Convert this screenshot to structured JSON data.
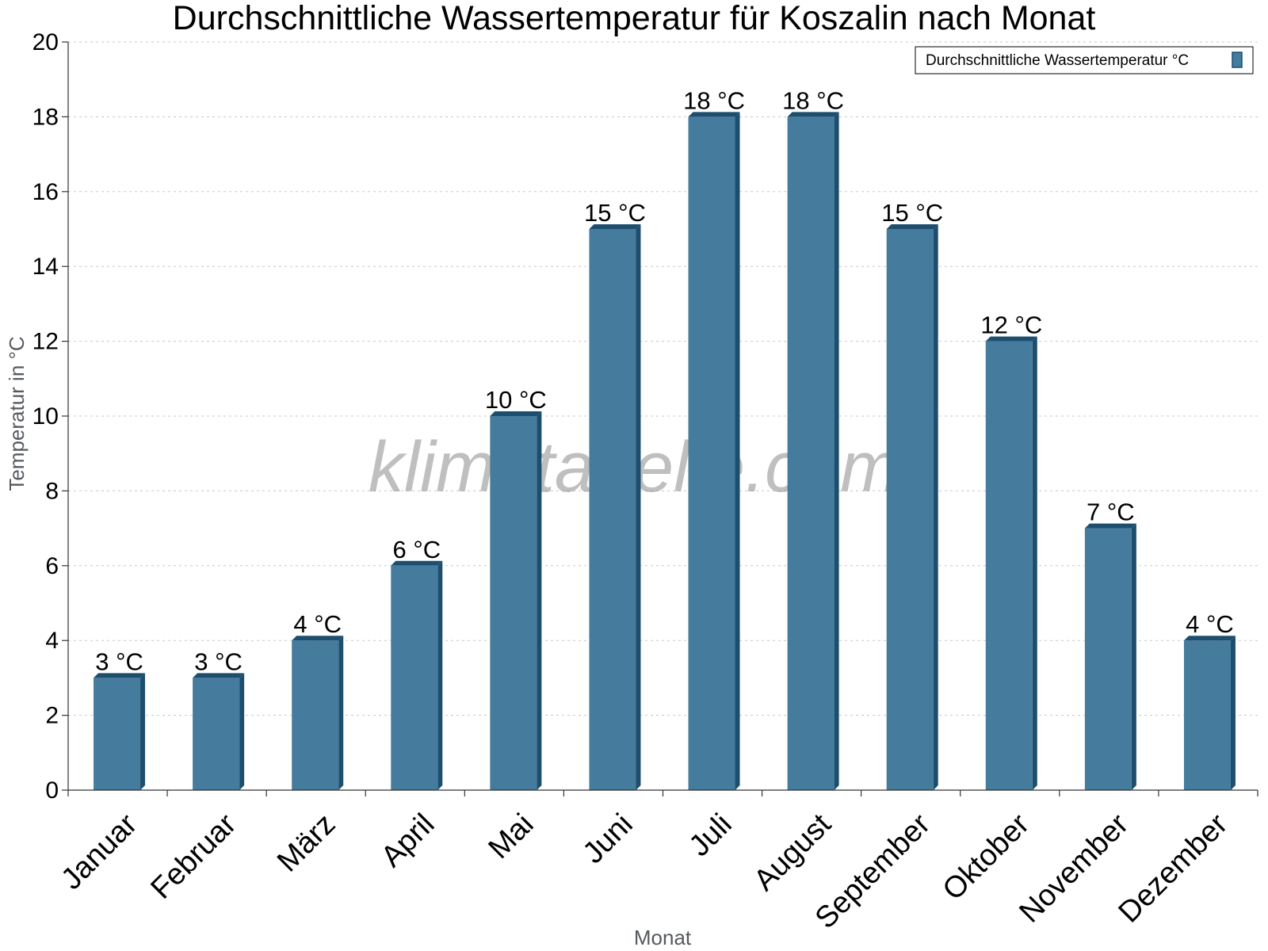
{
  "chart_data": {
    "type": "bar",
    "title": "Durchschnittliche Wassertemperatur für Koszalin nach Monat",
    "xlabel": "Monat",
    "ylabel": "Temperatur in °C",
    "ylim": [
      0,
      20
    ],
    "yticks": [
      0,
      2,
      4,
      6,
      8,
      10,
      12,
      14,
      16,
      18,
      20
    ],
    "grid": true,
    "legend_position": "top-right",
    "watermark": "klimatabelle.com",
    "categories": [
      "Januar",
      "Februar",
      "März",
      "April",
      "Mai",
      "Juni",
      "Juli",
      "August",
      "September",
      "Oktober",
      "November",
      "Dezember"
    ],
    "series": [
      {
        "name": "Durchschnittliche Wassertemperatur °C",
        "values": [
          3,
          3,
          4,
          6,
          10,
          15,
          18,
          18,
          15,
          12,
          7,
          4
        ],
        "labels": [
          "3 °C",
          "3 °C",
          "4 °C",
          "6 °C",
          "10 °C",
          "15 °C",
          "18 °C",
          "18 °C",
          "15 °C",
          "12 °C",
          "7 °C",
          "4 °C"
        ],
        "color": "#457b9d",
        "side_color": "#1d4e6e"
      }
    ]
  }
}
